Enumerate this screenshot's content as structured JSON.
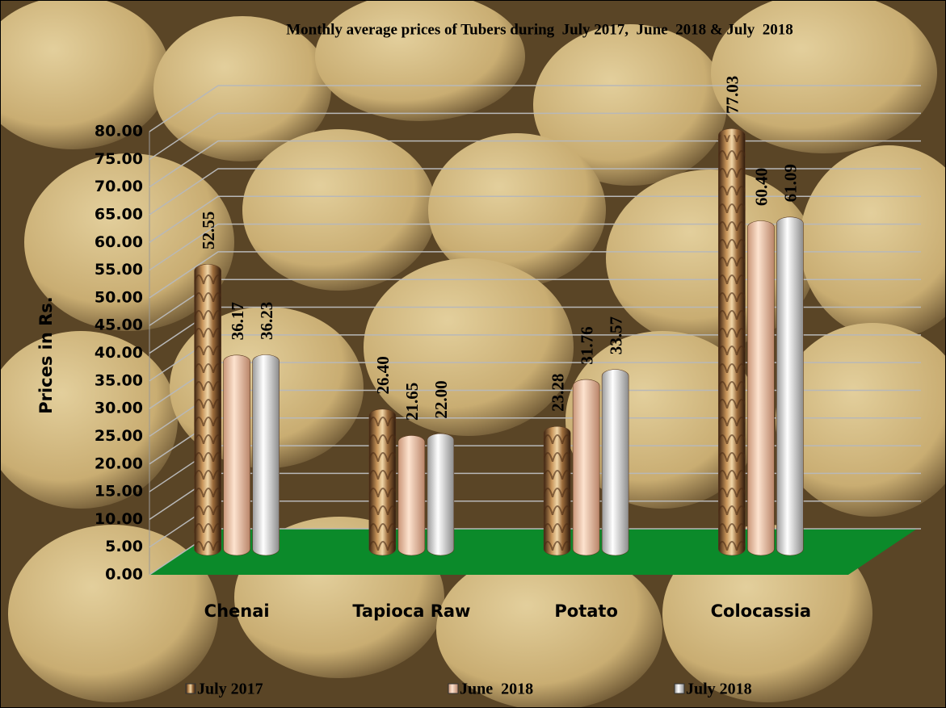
{
  "chart_data": {
    "type": "bar",
    "title": "Monthly average prices of Tubers during  July 2017,  June  2018 & July  2018",
    "y_label": "Prices in Rs.",
    "categories": [
      "Chenai",
      "Tapioca Raw",
      "Potato",
      "Colocassia"
    ],
    "series": [
      {
        "name": "July 2017",
        "color": "#8a5a2b",
        "values": [
          52.55,
          26.4,
          23.28,
          77.03
        ],
        "value_labels": [
          "52.55",
          "26.40",
          "23.28",
          "77.03"
        ]
      },
      {
        "name": "June  2018",
        "color": "#f6c9a8",
        "values": [
          36.17,
          21.65,
          31.76,
          60.4
        ],
        "value_labels": [
          "36.17",
          "21.65",
          "31.76",
          "60.40"
        ]
      },
      {
        "name": "July 2018",
        "color": "#e4e4e4",
        "values": [
          36.23,
          22.0,
          33.57,
          61.09
        ],
        "value_labels": [
          "36.23",
          "22.00",
          "33.57",
          "61.09"
        ]
      }
    ],
    "ylim": [
      0,
      80
    ],
    "yticks": [
      {
        "value": 0,
        "label": "0.00"
      },
      {
        "value": 5,
        "label": "5.00"
      },
      {
        "value": 10,
        "label": "10.00"
      },
      {
        "value": 15,
        "label": "15.00"
      },
      {
        "value": 20,
        "label": "20.00"
      },
      {
        "value": 25,
        "label": "25.00"
      },
      {
        "value": 30,
        "label": "30.00"
      },
      {
        "value": 35,
        "label": "35.00"
      },
      {
        "value": 40,
        "label": "40.00"
      },
      {
        "value": 45,
        "label": "45.00"
      },
      {
        "value": 50,
        "label": "50.00"
      },
      {
        "value": 55,
        "label": "55.00"
      },
      {
        "value": 60,
        "label": "60.00"
      },
      {
        "value": 65,
        "label": "65.00"
      },
      {
        "value": 70,
        "label": "70.00"
      },
      {
        "value": 75,
        "label": "75.00"
      },
      {
        "value": 80,
        "label": "80.00"
      }
    ],
    "grid": true,
    "legend": "bottom"
  }
}
